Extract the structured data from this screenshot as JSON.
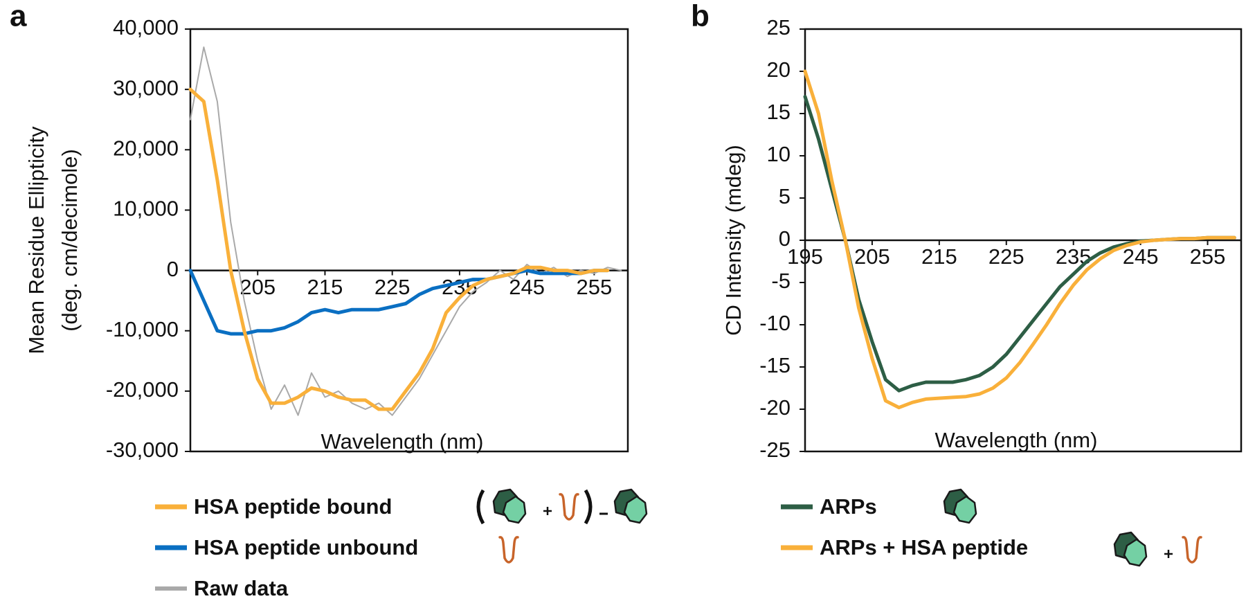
{
  "chart_data": [
    {
      "type": "line",
      "panel": "a",
      "xlabel": "Wavelength (nm)",
      "ylabel": [
        "Mean Residue Ellipticity",
        "(deg. cm/decimole)"
      ],
      "xlim": [
        195,
        260
      ],
      "xticks": [
        205,
        215,
        225,
        235,
        245,
        255
      ],
      "ylim": [
        -30000,
        40000
      ],
      "yticks": [
        {
          "value": -30000,
          "label": "-30,000"
        },
        {
          "value": -20000,
          "label": "-20,000"
        },
        {
          "value": -10000,
          "label": "-10,000"
        },
        0,
        {
          "value": 10000,
          "label": "10,000"
        },
        {
          "value": 20000,
          "label": "20,000"
        },
        {
          "value": 30000,
          "label": "30,000"
        },
        {
          "value": 40000,
          "label": "40,000"
        }
      ],
      "x": [
        195,
        197,
        199,
        201,
        203,
        205,
        207,
        209,
        211,
        213,
        215,
        217,
        219,
        221,
        223,
        225,
        227,
        229,
        231,
        233,
        235,
        237,
        239,
        241,
        243,
        245,
        247,
        249,
        251,
        253,
        255,
        257,
        259
      ],
      "series": [
        {
          "name": "HSA peptide bound",
          "color": "#f9b03a",
          "values": [
            30000,
            28000,
            15000,
            0,
            -10000,
            -18000,
            -22000,
            -22000,
            -21000,
            -19500,
            -20000,
            -21000,
            -21500,
            -21500,
            -23000,
            -23000,
            -20000,
            -17000,
            -13000,
            -7000,
            -4500,
            -2500,
            -1500,
            -1000,
            -500,
            500,
            500,
            0,
            0,
            -500,
            0,
            0,
            null
          ]
        },
        {
          "name": "HSA peptide unbound",
          "color": "#0a6fc2",
          "values": [
            0,
            -5000,
            -10000,
            -10500,
            -10500,
            -10000,
            -10000,
            -9500,
            -8500,
            -7000,
            -6500,
            -7000,
            -6500,
            -6500,
            -6500,
            -6000,
            -5500,
            -4000,
            -3000,
            -2500,
            -2000,
            -1500,
            -1500,
            -1000,
            -500,
            0,
            -500,
            -500,
            -500,
            -500,
            0,
            0,
            null
          ]
        },
        {
          "name": "Raw data",
          "color": "#a9a9a9",
          "values": [
            25000,
            37000,
            28000,
            8000,
            -5000,
            -15000,
            -23000,
            -19000,
            -24000,
            -17000,
            -21000,
            -20000,
            -22000,
            -23000,
            -22000,
            -24000,
            -21000,
            -18000,
            -14000,
            -10000,
            -6000,
            -3500,
            -2000,
            0,
            -1500,
            1000,
            -500,
            500,
            -1000,
            0,
            -500,
            500,
            0
          ]
        }
      ]
    },
    {
      "type": "line",
      "panel": "b",
      "xlabel": "Wavelength (nm)",
      "ylabel": "CD Intensity (mdeg)",
      "xlim": [
        195,
        260
      ],
      "xticks": [
        195,
        205,
        215,
        225,
        235,
        245,
        255
      ],
      "ylim": [
        -25,
        25
      ],
      "yticks": [
        -25,
        -20,
        -15,
        -10,
        -5,
        0,
        5,
        10,
        15,
        20,
        25
      ],
      "x": [
        195,
        197,
        199,
        201,
        203,
        205,
        207,
        209,
        211,
        213,
        215,
        217,
        219,
        221,
        223,
        225,
        227,
        229,
        231,
        233,
        235,
        237,
        239,
        241,
        243,
        245,
        247,
        249,
        251,
        253,
        255,
        257,
        259
      ],
      "series": [
        {
          "name": "ARPs",
          "color": "#2d5e45",
          "values": [
            17,
            12,
            6,
            0,
            -7,
            -12,
            -16.5,
            -17.8,
            -17.2,
            -16.8,
            -16.8,
            -16.8,
            -16.5,
            -16,
            -15,
            -13.5,
            -11.5,
            -9.5,
            -7.5,
            -5.5,
            -4,
            -2.5,
            -1.5,
            -0.8,
            -0.4,
            -0.1,
            0,
            0.1,
            0.2,
            0.2,
            0.3,
            0.3,
            0.3
          ]
        },
        {
          "name": "ARPs + HSA peptide",
          "color": "#f9b03a",
          "values": [
            20,
            15,
            7,
            0,
            -8,
            -14,
            -19,
            -19.8,
            -19.2,
            -18.8,
            -18.7,
            -18.6,
            -18.5,
            -18.2,
            -17.5,
            -16.3,
            -14.5,
            -12.3,
            -10,
            -7.5,
            -5.3,
            -3.5,
            -2.2,
            -1.2,
            -0.6,
            -0.2,
            0,
            0.1,
            0.2,
            0.2,
            0.3,
            0.3,
            0.3
          ]
        }
      ]
    }
  ]
}
